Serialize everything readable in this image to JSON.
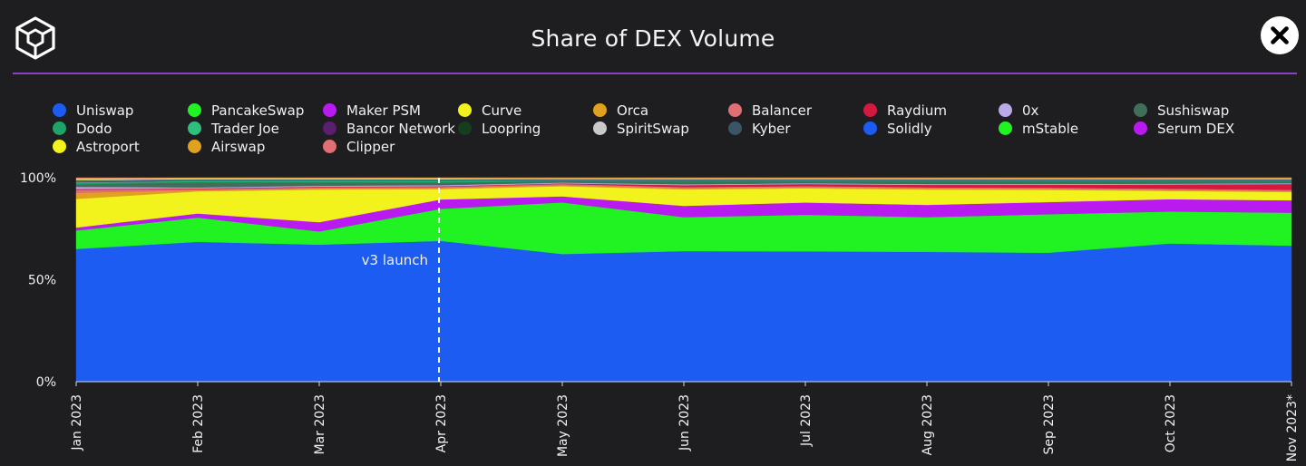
{
  "header": {
    "title": "Share of DEX Volume"
  },
  "icons": {
    "logo": "cube-logo-icon",
    "close": "close-icon"
  },
  "chart_data": {
    "type": "area",
    "stacked": true,
    "title": "Share of DEX Volume",
    "xlabel": "",
    "ylabel": "",
    "ylim": [
      0,
      100
    ],
    "y_ticks": [
      "0%",
      "50%",
      "100%"
    ],
    "x": [
      "Jan 2023",
      "Feb 2023",
      "Mar 2023",
      "Apr 2023",
      "May 2023",
      "Jun 2023",
      "Jul 2023",
      "Aug 2023",
      "Sep 2023",
      "Oct 2023",
      "Nov 2023*"
    ],
    "annotation": {
      "label": "v3 launch",
      "x": "Apr 2023",
      "style": "dashed-vertical-line"
    },
    "legend": {
      "position": "top",
      "columns": 9
    },
    "series": [
      {
        "name": "Uniswap",
        "color": "#1d5cf0",
        "values": [
          65,
          69,
          67,
          68,
          63,
          63.5,
          64,
          63.5,
          63.5,
          67,
          66
        ]
      },
      {
        "name": "PancakeSwap",
        "color": "#21f221",
        "values": [
          9,
          12,
          6.5,
          15.5,
          25.5,
          16.5,
          18,
          17,
          19,
          15.5,
          16
        ]
      },
      {
        "name": "Maker PSM",
        "color": "#b81af0",
        "values": [
          1.5,
          2,
          4.5,
          4.5,
          3,
          5.5,
          6,
          6,
          6,
          6,
          6
        ]
      },
      {
        "name": "Curve",
        "color": "#f2f21c",
        "values": [
          14,
          11,
          16,
          5,
          5,
          8,
          7,
          7.5,
          6,
          4,
          4
        ]
      },
      {
        "name": "Orca",
        "color": "#e0a21e",
        "values": [
          3,
          0.5,
          0.5,
          0.5,
          0.5,
          0.5,
          0.5,
          0.5,
          0.5,
          0.5,
          0.5
        ]
      },
      {
        "name": "Balancer",
        "color": "#e06f74",
        "values": [
          1.5,
          0.6,
          0.6,
          0.6,
          0.6,
          0.6,
          0.6,
          0.6,
          0.6,
          0.6,
          0.6
        ]
      },
      {
        "name": "Raydium",
        "color": "#d4183e",
        "values": [
          0.4,
          0.3,
          0.3,
          0.3,
          0.3,
          1,
          1,
          1.2,
          1.4,
          2,
          2.8
        ]
      },
      {
        "name": "0x",
        "color": "#b9a9e8",
        "values": [
          1,
          0.5,
          0.5,
          0.5,
          0.4,
          0.4,
          0.4,
          0.4,
          0.4,
          0.4,
          0.4
        ]
      },
      {
        "name": "Sushiswap",
        "color": "#3f6f58",
        "values": [
          1.3,
          2.5,
          1.6,
          1.3,
          0.6,
          1.3,
          0.8,
          1.2,
          1.2,
          1,
          0.8
        ]
      },
      {
        "name": "Dodo",
        "color": "#1fa36a",
        "values": [
          0.6,
          0.4,
          0.4,
          0.4,
          0.2,
          0.3,
          0.3,
          0.3,
          0.3,
          0.3,
          0.3
        ]
      },
      {
        "name": "Trader Joe",
        "color": "#2ebf7d",
        "values": [
          0.4,
          0.3,
          0.3,
          0.3,
          0.2,
          0.2,
          0.2,
          0.2,
          0.2,
          0.2,
          0.2
        ]
      },
      {
        "name": "Bancor Network",
        "color": "#5a1f6e",
        "values": [
          0.2,
          0.1,
          0.1,
          0.1,
          0.1,
          0.1,
          0.1,
          0.1,
          0.1,
          0.1,
          0.1
        ]
      },
      {
        "name": "Loopring",
        "color": "#163d1e",
        "values": [
          0.2,
          0.1,
          0.1,
          0.1,
          0.1,
          0.1,
          0.1,
          0.1,
          0.1,
          0.1,
          0.1
        ]
      },
      {
        "name": "SpiritSwap",
        "color": "#c9c9c9",
        "values": [
          0.2,
          0.1,
          0.1,
          0.1,
          0.1,
          0.1,
          0.1,
          0.1,
          0.1,
          0.1,
          0.1
        ]
      },
      {
        "name": "Kyber",
        "color": "#3a5566",
        "values": [
          0.3,
          0.3,
          0.3,
          0.3,
          0.2,
          0.2,
          0.2,
          0.2,
          0.2,
          0.2,
          0.2
        ]
      },
      {
        "name": "Solidly",
        "color": "#1d5cf0",
        "values": [
          0.1,
          0.1,
          0.1,
          0.1,
          0.1,
          0.1,
          0.1,
          0.1,
          0.1,
          0.1,
          0.1
        ]
      },
      {
        "name": "mStable",
        "color": "#21f221",
        "values": [
          0.1,
          0.1,
          0.1,
          0.1,
          0.1,
          0.1,
          0.1,
          0.1,
          0.1,
          0.1,
          0.1
        ]
      },
      {
        "name": "Serum DEX",
        "color": "#b81af0",
        "values": [
          0.1,
          0.1,
          0.1,
          0.1,
          0.1,
          0.1,
          0.1,
          0.1,
          0.1,
          0.1,
          0.1
        ]
      },
      {
        "name": "Astroport",
        "color": "#f2f21c",
        "values": [
          0.6,
          0.5,
          0.5,
          0.5,
          0.4,
          0.4,
          0.4,
          0.4,
          0.4,
          0.4,
          0.4
        ]
      },
      {
        "name": "Airswap",
        "color": "#e0a21e",
        "values": [
          0.2,
          0.1,
          0.1,
          0.1,
          0.1,
          0.1,
          0.1,
          0.1,
          0.1,
          0.1,
          0.1
        ]
      },
      {
        "name": "Clipper",
        "color": "#e06f74",
        "values": [
          0.2,
          0.1,
          0.1,
          0.1,
          0.1,
          0.1,
          0.1,
          0.1,
          0.1,
          0.1,
          0.1
        ]
      }
    ]
  }
}
